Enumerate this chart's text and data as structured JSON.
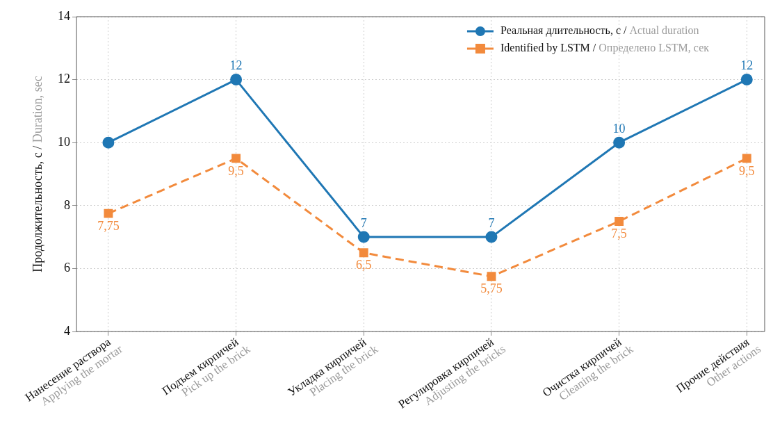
{
  "chart_data": {
    "type": "line",
    "ylabel": "Продолжительность, с / Duration, sec",
    "categories": [
      "Нанесение раствора\nApplying the mortar",
      "Подъем кирпичей\nPick up the brick",
      "Укладка кирпичей\nPlacing the brick",
      "Регулировка кирпичей\nAdjusting the bricks",
      "Очистка кирпичей\nCleaning the brick",
      "Прочие действия\nOther actions"
    ],
    "series": [
      {
        "name": "Реальная длительность, с / Actual duration",
        "color": "#1f77b4",
        "values": [
          10,
          12,
          7,
          7,
          10,
          12
        ],
        "marker": "circle",
        "line_style": "solid",
        "value_labels": [
          null,
          "12",
          "7",
          "7",
          "10",
          "12"
        ]
      },
      {
        "name": "Identified by LSTM / Определено LSTM, сек",
        "color": "#f28a3c",
        "values": [
          7.75,
          9.5,
          6.5,
          5.75,
          7.5,
          9.5
        ],
        "marker": "square",
        "line_style": "dashed",
        "value_labels": [
          "7,75",
          "9,5",
          "6,5",
          "5,75",
          "7,5",
          "9,5"
        ]
      }
    ],
    "ylim": [
      4,
      14
    ],
    "yticks": [
      4,
      6,
      8,
      10,
      12,
      14
    ],
    "grid": true,
    "legend": "top right"
  }
}
